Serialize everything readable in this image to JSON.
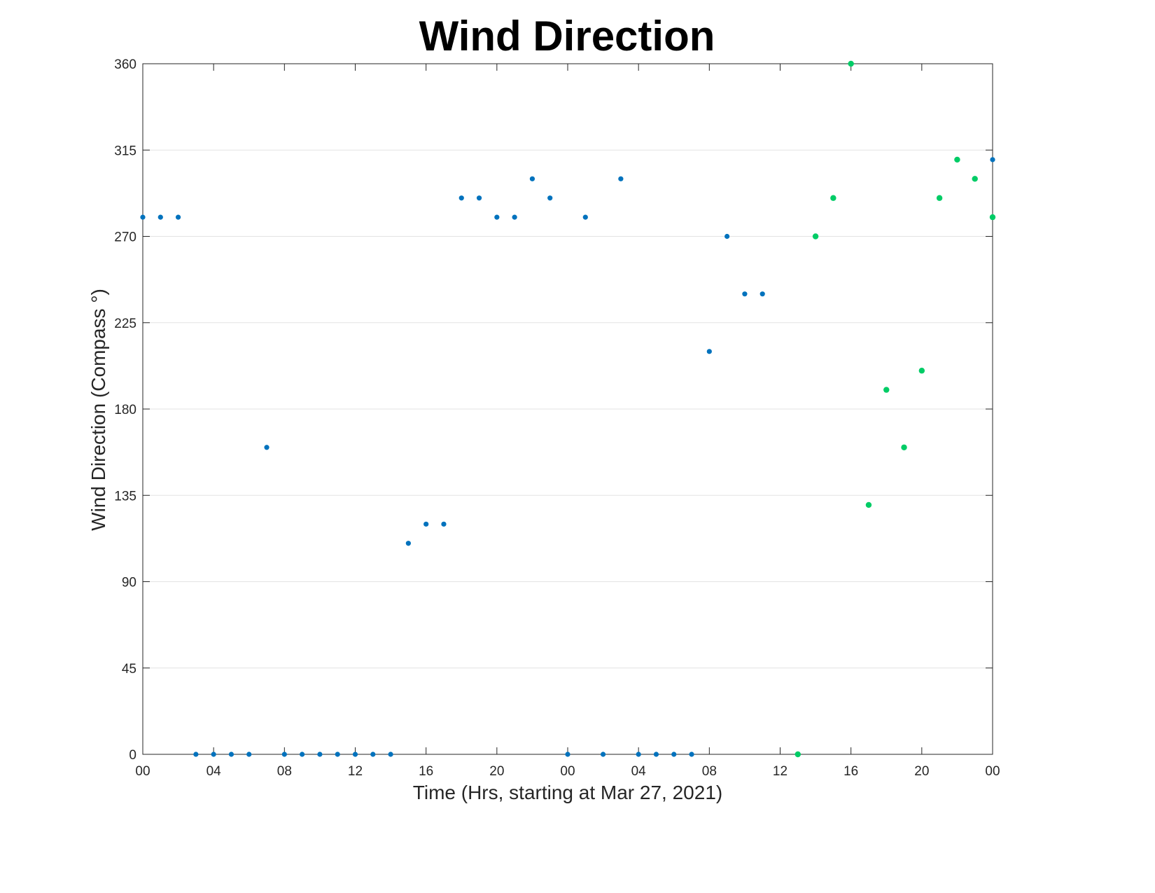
{
  "chart_data": {
    "type": "scatter",
    "title": "Wind Direction",
    "xlabel": "Time (Hrs, starting at Mar 27, 2021)",
    "ylabel": "Wind Direction (Compass °)",
    "xlim": [
      0,
      48
    ],
    "ylim": [
      0,
      360
    ],
    "x_ticks": [
      0,
      4,
      8,
      12,
      16,
      20,
      24,
      28,
      32,
      36,
      40,
      44,
      48
    ],
    "x_tick_labels": [
      "00",
      "04",
      "08",
      "12",
      "16",
      "20",
      "00",
      "04",
      "08",
      "12",
      "16",
      "20",
      "00"
    ],
    "y_ticks": [
      0,
      45,
      90,
      135,
      180,
      225,
      270,
      315,
      360
    ],
    "y_tick_labels": [
      "0",
      "45",
      "90",
      "135",
      "180",
      "225",
      "270",
      "315",
      "360"
    ],
    "grid": "horizontal",
    "series": [
      {
        "color": "#0072BD",
        "points": [
          [
            0,
            280
          ],
          [
            1,
            280
          ],
          [
            2,
            280
          ],
          [
            3,
            0
          ],
          [
            4,
            0
          ],
          [
            5,
            0
          ],
          [
            6,
            0
          ],
          [
            7,
            160
          ],
          [
            8,
            0
          ],
          [
            9,
            0
          ],
          [
            10,
            0
          ],
          [
            11,
            0
          ],
          [
            12,
            0
          ],
          [
            13,
            0
          ],
          [
            14,
            0
          ],
          [
            15,
            110
          ],
          [
            16,
            120
          ],
          [
            17,
            120
          ],
          [
            18,
            290
          ],
          [
            19,
            290
          ],
          [
            20,
            280
          ],
          [
            21,
            280
          ],
          [
            22,
            300
          ],
          [
            23,
            290
          ],
          [
            24,
            0
          ],
          [
            25,
            280
          ],
          [
            26,
            0
          ],
          [
            27,
            300
          ],
          [
            28,
            0
          ],
          [
            29,
            0
          ],
          [
            30,
            0
          ],
          [
            31,
            0
          ],
          [
            32,
            210
          ],
          [
            33,
            270
          ],
          [
            34,
            240
          ],
          [
            35,
            240
          ],
          [
            48,
            310
          ]
        ]
      },
      {
        "color": "#00CC66",
        "points": [
          [
            37,
            0
          ],
          [
            38,
            270
          ],
          [
            39,
            290
          ],
          [
            40,
            360
          ],
          [
            41,
            130
          ],
          [
            42,
            190
          ],
          [
            43,
            160
          ],
          [
            44,
            200
          ],
          [
            45,
            290
          ],
          [
            46,
            310
          ],
          [
            47,
            300
          ],
          [
            48,
            280
          ]
        ]
      }
    ]
  }
}
